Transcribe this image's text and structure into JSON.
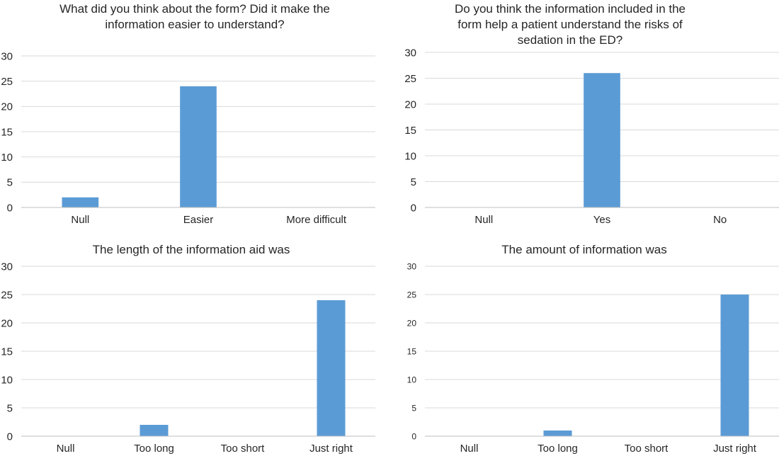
{
  "colors": {
    "bar": "#5b9bd5",
    "grid": "#d9d9d9",
    "axis": "#bfbfbf",
    "text": "#262626"
  },
  "chart_data": [
    {
      "type": "bar",
      "title": "What did you think about the form? Did it make the information easier to understand?",
      "categories": [
        "Null",
        "Easier",
        "More difficult"
      ],
      "values": [
        2,
        24,
        0
      ],
      "ylim": [
        0,
        30
      ],
      "yticks": [
        0,
        5,
        10,
        15,
        20,
        25,
        30
      ],
      "grid": true,
      "legend": "none"
    },
    {
      "type": "bar",
      "title": "Do you think the information included in the form help a patient understand the risks of sedation in the ED?",
      "categories": [
        "Null",
        "Yes",
        "No"
      ],
      "values": [
        0,
        26,
        0
      ],
      "ylim": [
        0,
        30
      ],
      "yticks": [
        0,
        5,
        10,
        15,
        20,
        25,
        30
      ],
      "grid": true,
      "legend": "none"
    },
    {
      "type": "bar",
      "title": "The length of the information aid was",
      "categories": [
        "Null",
        "Too long",
        "Too short",
        "Just right"
      ],
      "values": [
        0,
        2,
        0,
        24
      ],
      "ylim": [
        0,
        30
      ],
      "yticks": [
        0,
        5,
        10,
        15,
        20,
        25,
        30
      ],
      "grid": true,
      "legend": "none"
    },
    {
      "type": "bar",
      "title": "The amount of information was",
      "categories": [
        "Null",
        "Too long",
        "Too short",
        "Just right"
      ],
      "values": [
        0,
        1,
        0,
        25
      ],
      "ylim": [
        0,
        30
      ],
      "yticks": [
        0,
        5,
        10,
        15,
        20,
        25,
        30
      ],
      "grid": true,
      "legend": "none"
    }
  ]
}
